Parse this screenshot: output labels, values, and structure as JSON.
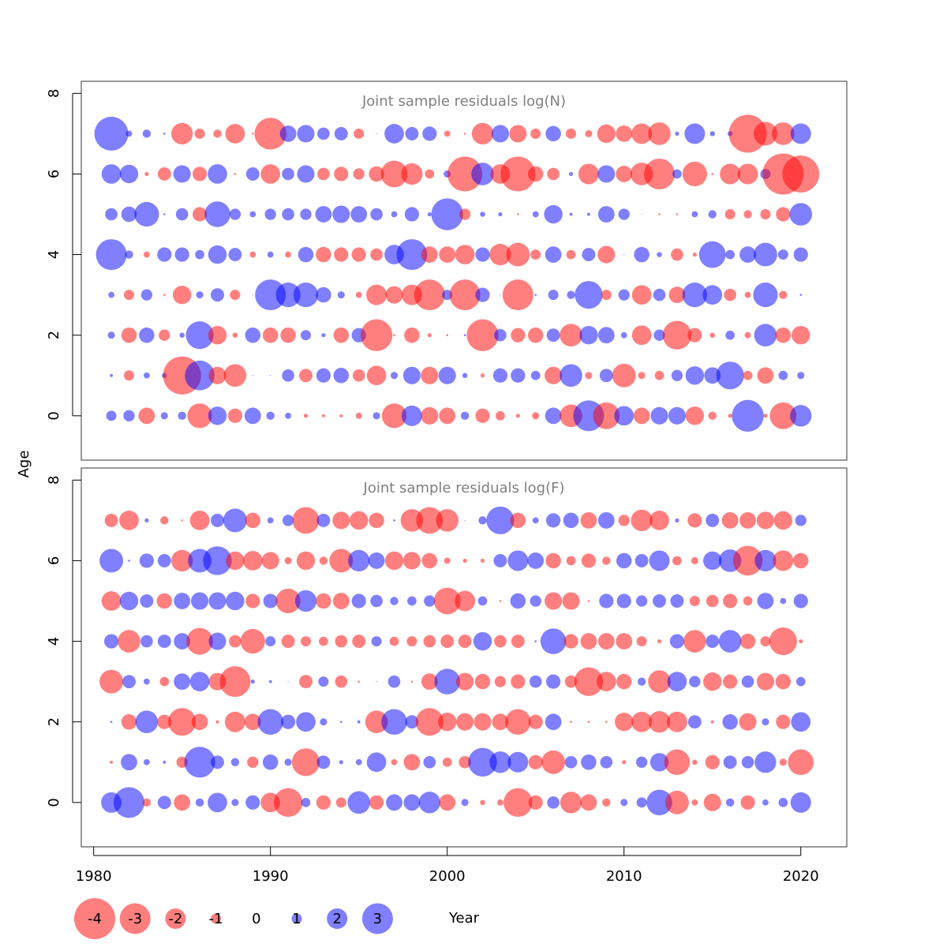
{
  "chart_data": {
    "type": "bubble",
    "xlabel": "Year",
    "ylabel": "Age",
    "x_ticks": [
      1980,
      1990,
      2000,
      2010,
      2020
    ],
    "y_ticks": [
      0,
      2,
      4,
      6,
      8
    ],
    "xlim": [
      1979.3,
      2022.6
    ],
    "ylim": [
      -1.1,
      8.3
    ],
    "colors": {
      "negative": "#ff0000",
      "positive": "#0000ff",
      "panel_title": "#808080"
    },
    "legend": {
      "values": [
        -4,
        -3,
        -2,
        -1,
        0,
        1,
        2,
        3
      ],
      "labels": [
        "-4",
        "-3",
        "-2",
        "-1",
        "0",
        "1",
        "2",
        "3"
      ]
    },
    "years": [
      1981,
      1982,
      1983,
      1984,
      1985,
      1986,
      1987,
      1988,
      1989,
      1990,
      1991,
      1992,
      1993,
      1994,
      1995,
      1996,
      1997,
      1998,
      1999,
      2000,
      2001,
      2002,
      2003,
      2004,
      2005,
      2006,
      2007,
      2008,
      2009,
      2010,
      2011,
      2012,
      2013,
      2014,
      2015,
      2016,
      2017,
      2018,
      2019,
      2020
    ],
    "ages": [
      0,
      1,
      2,
      3,
      4,
      5,
      6,
      7
    ],
    "panels": [
      {
        "title": "Joint sample residuals log(N)",
        "residuals": [
          [
            1.0,
            1.1,
            -1.6,
            0.7,
            0.8,
            -2.4,
            1.8,
            -1.4,
            1.6,
            0.8,
            0.6,
            -0.4,
            -0.3,
            -0.3,
            -0.6,
            0.7,
            -2.4,
            2.0,
            -1.7,
            -1.6,
            0.8,
            -1.4,
            -0.9,
            -0.4,
            -0.7,
            1.6,
            -2.2,
            3.0,
            -2.6,
            1.9,
            -1.6,
            1.7,
            1.7,
            -1.8,
            -0.8,
            -0.4,
            3.1,
            -0.4,
            -2.6,
            2.1
          ],
          [
            0.3,
            -1.0,
            0.6,
            0.5,
            -3.7,
            2.9,
            -1.7,
            -2.2,
            0.1,
            0.1,
            1.2,
            -1.3,
            1.4,
            1.5,
            -1.2,
            -1.9,
            0.7,
            1.7,
            -1.7,
            1.7,
            0.5,
            -0.4,
            1.4,
            1.4,
            0.9,
            -1.7,
            2.2,
            -0.7,
            1.3,
            -2.3,
            -0.7,
            -0.9,
            1.1,
            1.8,
            1.6,
            2.7,
            -0.9,
            -1.6,
            0.9,
            0.7
          ],
          [
            0.7,
            -1.5,
            1.5,
            -1.1,
            0.5,
            2.7,
            -1.8,
            -0.5,
            1.5,
            -1.5,
            -1.5,
            1.0,
            0.4,
            -1.5,
            1.4,
            -3.1,
            -0.2,
            -1.5,
            -0.4,
            -0.2,
            0.2,
            -3.1,
            1.2,
            -1.4,
            -1.5,
            1.3,
            -2.2,
            1.8,
            1.6,
            0.6,
            -1.9,
            1.1,
            -2.8,
            -1.4,
            -0.5,
            0.9,
            -0.6,
            2.2,
            -1.5,
            -1.8
          ],
          [
            0.6,
            -1.0,
            1.1,
            -0.2,
            -1.8,
            0.7,
            1.3,
            -1.0,
            0.1,
            3.0,
            2.4,
            2.4,
            1.5,
            0.7,
            -0.6,
            -2.0,
            -1.7,
            -2.0,
            -3.0,
            1.0,
            -3.0,
            1.4,
            0.1,
            -3.0,
            0.2,
            1.0,
            0.8,
            2.7,
            -1.0,
            1.1,
            -1.9,
            1.2,
            -1.6,
            2.4,
            1.9,
            -1.2,
            -0.6,
            2.4,
            -0.8,
            0.2
          ],
          [
            3.0,
            0.8,
            -0.6,
            1.4,
            1.4,
            0.9,
            1.8,
            1.3,
            -0.6,
            0.6,
            -0.6,
            1.5,
            -1.5,
            -1.4,
            -1.4,
            -1.2,
            1.9,
            3.0,
            -1.6,
            -1.6,
            -1.9,
            1.4,
            -2.1,
            -2.3,
            -1.0,
            1.6,
            -0.9,
            1.3,
            -1.7,
            0.1,
            1.5,
            0.5,
            -1.2,
            -0.4,
            2.6,
            0.9,
            1.6,
            2.3,
            1.0,
            1.4
          ],
          [
            1.2,
            1.5,
            2.4,
            0.2,
            1.2,
            -1.4,
            2.5,
            1.1,
            0.6,
            1.1,
            1.2,
            1.1,
            1.6,
            1.7,
            1.6,
            1.2,
            0.6,
            1.4,
            0.4,
            3.1,
            -1.1,
            0.5,
            0.4,
            -0.2,
            0.6,
            1.8,
            0.3,
            0.3,
            1.6,
            1.1,
            -0.1,
            -0.2,
            -0.2,
            0.6,
            0.8,
            -1.0,
            -0.8,
            -1.0,
            -1.4,
            2.2
          ],
          [
            1.9,
            1.8,
            -0.4,
            -1.3,
            1.7,
            -1.4,
            1.9,
            -0.2,
            1.3,
            -1.9,
            1.2,
            1.7,
            -1.2,
            -1.4,
            -1.1,
            -1.5,
            -2.6,
            -2.1,
            -0.9,
            0.7,
            -3.4,
            2.2,
            -1.9,
            -3.4,
            -1.5,
            -1.2,
            0.4,
            -2.0,
            1.7,
            -1.6,
            -2.2,
            -3.0,
            0.9,
            -2.4,
            -0.2,
            -2.0,
            -2.0,
            1.0,
            -4.0,
            -3.6
          ],
          [
            3.3,
            0.6,
            0.8,
            0.2,
            -2.1,
            -1.0,
            -0.8,
            -1.9,
            -0.2,
            -3.1,
            1.6,
            1.7,
            1.2,
            1.3,
            -1.0,
            0.1,
            1.9,
            1.3,
            1.4,
            -0.6,
            -0.2,
            -2.1,
            1.7,
            -1.7,
            -1.0,
            1.5,
            -1.0,
            -0.7,
            -1.8,
            -1.6,
            -2.0,
            -2.2,
            0.4,
            2.0,
            0.5,
            0.5,
            -3.7,
            -2.3,
            -2.2,
            2.0
          ]
        ]
      },
      {
        "title": "Joint sample residuals log(F)",
        "residuals": [
          [
            2.0,
            3.0,
            -0.8,
            1.3,
            -1.6,
            0.8,
            1.9,
            0.7,
            1.4,
            -1.9,
            -2.8,
            0.9,
            -1.4,
            -1.0,
            2.2,
            -1.4,
            1.6,
            1.6,
            2.1,
            -1.6,
            0.7,
            -0.5,
            -0.6,
            -2.8,
            -1.4,
            1.2,
            -2.1,
            -1.6,
            -0.8,
            0.7,
            1.0,
            2.5,
            -2.3,
            -0.6,
            -1.7,
            0.8,
            -1.4,
            0.6,
            0.9,
            2.0
          ],
          [
            -0.3,
            1.6,
            0.6,
            0.3,
            -1.1,
            3.0,
            1.3,
            0.8,
            -1.1,
            1.5,
            0.7,
            -2.7,
            1.3,
            0.4,
            0.6,
            1.9,
            -0.6,
            -1.6,
            1.2,
            -0.9,
            -1.2,
            2.8,
            2.1,
            2.0,
            -1.4,
            -2.3,
            1.2,
            1.5,
            1.2,
            -0.4,
            1.1,
            1.8,
            -2.5,
            -0.5,
            -1.4,
            1.3,
            1.2,
            2.1,
            -0.7,
            -2.5
          ],
          [
            0.2,
            -1.5,
            2.2,
            -1.4,
            -2.7,
            -1.6,
            -0.3,
            -2.0,
            -1.6,
            2.5,
            1.4,
            1.9,
            0.7,
            0.2,
            0.3,
            -2.2,
            2.5,
            1.3,
            -2.7,
            -1.8,
            -1.7,
            -1.7,
            -1.6,
            -2.5,
            -1.4,
            1.6,
            -0.2,
            -0.2,
            -0.2,
            -1.8,
            -2.0,
            -2.1,
            -2.0,
            1.3,
            -0.3,
            1.5,
            -1.7,
            0.7,
            -1.4,
            1.9
          ],
          [
            -2.3,
            1.3,
            0.6,
            -0.9,
            1.6,
            1.9,
            -1.7,
            -3.0,
            0.4,
            0.3,
            0.1,
            -1.3,
            1.0,
            -1.2,
            -0.2,
            0.1,
            1.2,
            -0.2,
            -1.6,
            2.5,
            -1.7,
            -1.5,
            -1.1,
            -1.4,
            1.2,
            1.4,
            -1.2,
            -2.8,
            -1.9,
            -1.5,
            0.8,
            -2.2,
            1.9,
            1.1,
            -1.8,
            -1.4,
            1.2,
            -1.7,
            -1.5,
            0.9
          ],
          [
            1.4,
            -2.2,
            1.2,
            1.3,
            1.6,
            -2.6,
            1.7,
            -1.2,
            -2.4,
            1.0,
            -1.3,
            -1.0,
            -0.9,
            -1.2,
            -1.3,
            1.0,
            -0.9,
            -1.0,
            -1.2,
            -1.3,
            -1.3,
            1.8,
            -1.2,
            -1.3,
            0.2,
            2.5,
            -1.4,
            -1.6,
            -1.6,
            -1.6,
            -1.0,
            -0.4,
            1.4,
            -2.2,
            1.3,
            2.2,
            -1.5,
            -1.0,
            -2.7,
            -0.4
          ],
          [
            -1.9,
            1.8,
            1.3,
            -1.5,
            1.6,
            1.7,
            1.7,
            1.8,
            -1.4,
            1.4,
            -2.4,
            2.1,
            -1.5,
            -1.6,
            1.4,
            1.2,
            0.8,
            0.9,
            1.1,
            -2.6,
            -2.0,
            0.9,
            -0.2,
            1.5,
            1.1,
            -1.7,
            -1.7,
            -0.2,
            1.4,
            1.4,
            1.1,
            1.3,
            1.3,
            -1.0,
            -1.2,
            -1.4,
            -0.9,
            1.6,
            0.6,
            1.4
          ],
          [
            2.3,
            0.2,
            1.4,
            1.3,
            -2.1,
            2.3,
            2.8,
            -1.8,
            -1.9,
            -1.7,
            -0.7,
            -1.8,
            -0.8,
            -2.3,
            2.1,
            1.6,
            -1.8,
            -1.7,
            -1.5,
            -0.6,
            -0.4,
            -0.4,
            1.3,
            2.0,
            1.6,
            -1.5,
            -0.9,
            -1.4,
            -0.8,
            1.5,
            1.3,
            2.0,
            -0.9,
            -0.7,
            1.8,
            2.2,
            -2.9,
            2.1,
            -2.0,
            -1.5
          ],
          [
            -1.3,
            -1.9,
            0.4,
            -0.8,
            -0.2,
            -1.9,
            1.3,
            2.3,
            -1.5,
            0.6,
            1.1,
            -2.6,
            1.3,
            -1.7,
            -1.8,
            -1.5,
            0.2,
            -2.2,
            -2.6,
            -2.2,
            0.1,
            0.8,
            2.7,
            -1.5,
            0.6,
            1.4,
            1.5,
            -1.6,
            1.6,
            -1.1,
            -2.1,
            -1.9,
            0.4,
            -1.4,
            1.3,
            -1.6,
            -1.6,
            -1.7,
            -1.8,
            1.1
          ]
        ]
      }
    ]
  }
}
